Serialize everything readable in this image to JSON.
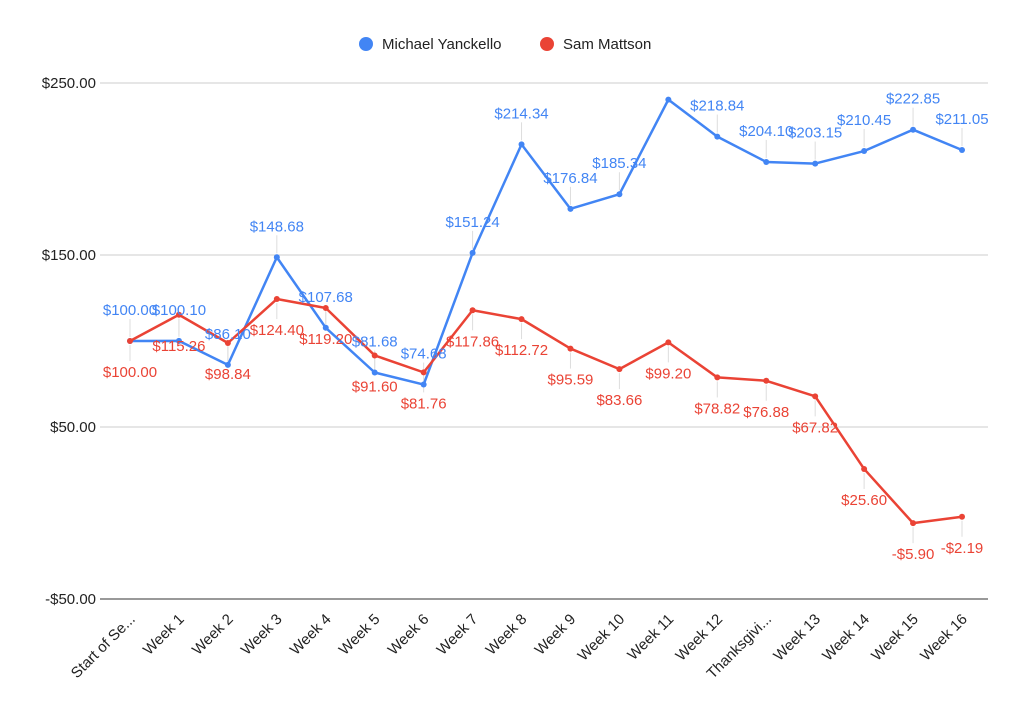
{
  "chart_data": {
    "type": "line",
    "title": "",
    "xlabel": "",
    "ylabel": "",
    "categories": [
      "Start of Se...",
      "Week 1",
      "Week 2",
      "Week 3",
      "Week 4",
      "Week 5",
      "Week 6",
      "Week 7",
      "Week 8",
      "Week 9",
      "Week 10",
      "Week 11",
      "Week 12",
      "Thanksgivi...",
      "Week 13",
      "Week 14",
      "Week 15",
      "Week 16"
    ],
    "ylim": [
      -50,
      250
    ],
    "yticks": [
      -50,
      50,
      150,
      250
    ],
    "ytick_labels": [
      "-$50.00",
      "$50.00",
      "$150.00",
      "$250.00"
    ],
    "grid": true,
    "legend_position": "top",
    "series": [
      {
        "name": "Michael Yanckello",
        "color": "#4285f4",
        "values": [
          100.0,
          100.1,
          86.1,
          148.68,
          107.68,
          81.68,
          74.68,
          151.24,
          214.34,
          176.84,
          185.34,
          240.34,
          218.84,
          204.1,
          203.15,
          210.45,
          222.85,
          211.05
        ],
        "data_labels": [
          "$100.00",
          "$100.10",
          "$86.10",
          "$148.68",
          "$107.68",
          "$81.68",
          "$74.68",
          "$151.24",
          "$214.34",
          "$176.84",
          "$185.34",
          "",
          "$218.84",
          "$204.10",
          "$203.15",
          "$210.45",
          "$222.85",
          "$211.05"
        ]
      },
      {
        "name": "Sam Mattson",
        "color": "#ea4335",
        "values": [
          100.0,
          115.26,
          98.84,
          124.4,
          119.2,
          91.6,
          81.76,
          117.86,
          112.72,
          95.59,
          83.66,
          99.2,
          78.82,
          76.88,
          67.82,
          25.6,
          -5.9,
          -2.19
        ],
        "data_labels": [
          "$100.00",
          "$115.26",
          "$98.84",
          "$124.40",
          "$119.20",
          "$91.60",
          "$81.76",
          "$117.86",
          "$112.72",
          "$95.59",
          "$83.66",
          "$99.20",
          "$78.82",
          "$76.88",
          "$67.82",
          "$25.60",
          "-$5.90",
          "-$2.19"
        ]
      }
    ]
  }
}
